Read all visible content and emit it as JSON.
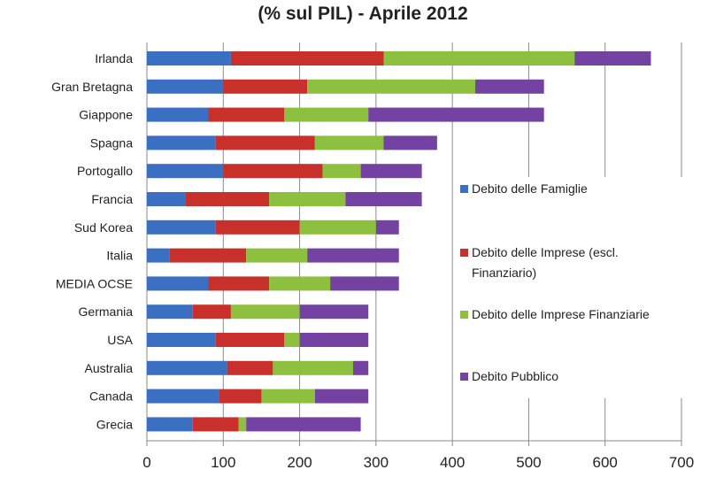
{
  "chart_data": {
    "type": "bar",
    "orientation": "horizontal",
    "stacked": true,
    "title": "(% sul PIL) - Aprile 2012",
    "xlabel": "",
    "ylabel": "",
    "xlim": [
      0,
      700
    ],
    "xticks": [
      0,
      100,
      200,
      300,
      400,
      500,
      600,
      700
    ],
    "grid": true,
    "legend_position": "right",
    "categories": [
      "Irlanda",
      "Gran Bretagna",
      "Giappone",
      "Spagna",
      "Portogallo",
      "Francia",
      "Sud Korea",
      "Italia",
      "MEDIA OCSE",
      "Germania",
      "USA",
      "Australia",
      "Canada",
      "Grecia"
    ],
    "series": [
      {
        "name": "Debito delle Famiglie",
        "color": "#3a6fc1",
        "values": [
          110,
          100,
          80,
          90,
          100,
          50,
          90,
          30,
          80,
          60,
          90,
          105,
          95,
          60
        ]
      },
      {
        "name": "Debito delle Imprese (escl. Finanziario)",
        "color": "#c7302b",
        "values": [
          200,
          110,
          100,
          130,
          130,
          110,
          110,
          100,
          80,
          50,
          90,
          60,
          55,
          60
        ]
      },
      {
        "name": "Debito delle Imprese Finanziarie",
        "color": "#8dc03f",
        "values": [
          250,
          220,
          110,
          90,
          50,
          100,
          100,
          80,
          80,
          90,
          20,
          105,
          70,
          10
        ]
      },
      {
        "name": "Debito Pubblico",
        "color": "#7442a0",
        "values": [
          100,
          90,
          230,
          70,
          80,
          100,
          30,
          120,
          90,
          90,
          90,
          20,
          70,
          150
        ]
      }
    ],
    "legend_lines": [
      [
        "Debito delle Famiglie"
      ],
      [
        "Debito delle Imprese (escl.",
        "Finanziario)"
      ],
      [
        "Debito delle Imprese Finanziarie"
      ],
      [
        "Debito Pubblico"
      ]
    ]
  }
}
